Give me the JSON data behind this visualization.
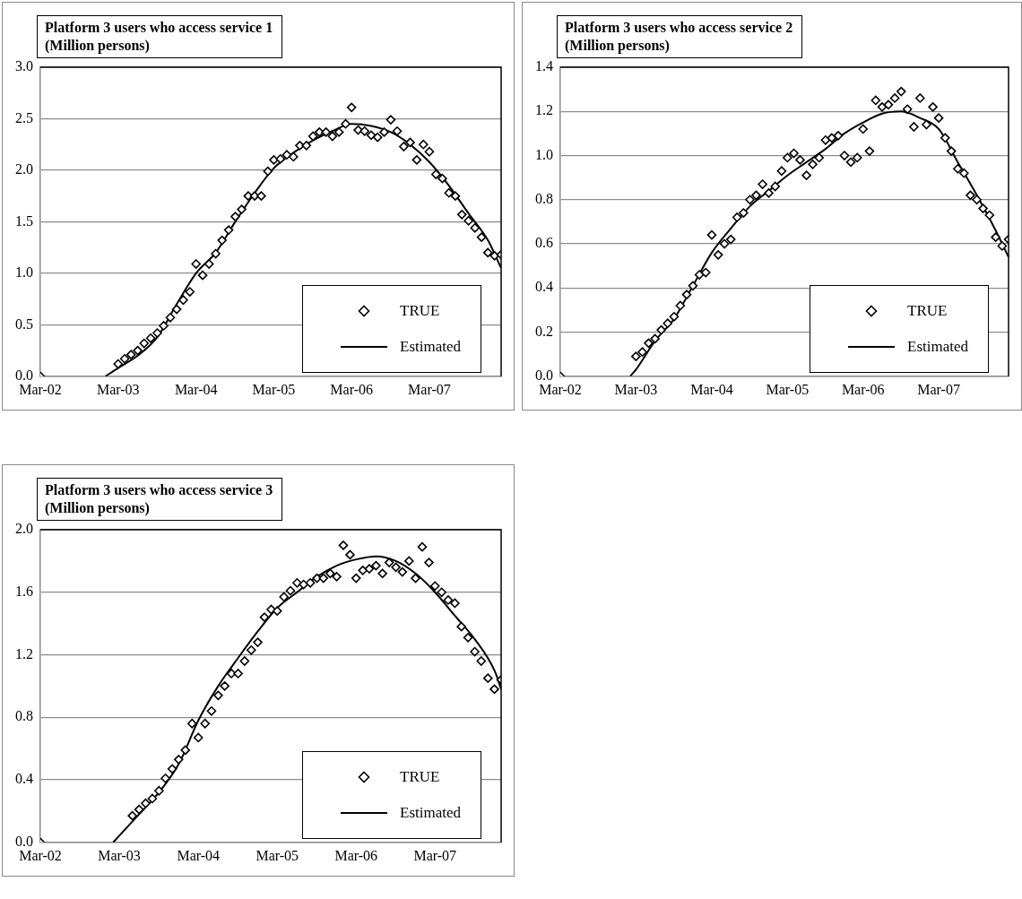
{
  "chart_data": [
    {
      "type": "scatter",
      "title": "Platform 3 users who access service 1",
      "ylabel": "(Million persons)",
      "xlim": [
        "2002-03",
        "2008-02"
      ],
      "ylim": [
        0,
        3
      ],
      "xticks": [
        {
          "value": "2002-03",
          "label": "Mar-02"
        },
        {
          "value": "2003-03",
          "label": "Mar-03"
        },
        {
          "value": "2004-03",
          "label": "Mar-04"
        },
        {
          "value": "2005-03",
          "label": "Mar-05"
        },
        {
          "value": "2006-03",
          "label": "Mar-06"
        },
        {
          "value": "2007-03",
          "label": "Mar-07"
        }
      ],
      "yticks": [
        {
          "value": 0,
          "label": "0.0"
        },
        0.5,
        {
          "value": 1,
          "label": "1.0"
        },
        1.5,
        {
          "value": 2,
          "label": "2.0"
        },
        2.5,
        {
          "value": 3,
          "label": "3.0"
        }
      ],
      "grid": "y",
      "legend": "bottom right",
      "series": [
        {
          "name": "TRUE",
          "type": "scatter",
          "color": "#000000",
          "marker": "diamond",
          "x": [
            "2002-03",
            "2003-03",
            "2003-04",
            "2003-05",
            "2003-06",
            "2003-07",
            "2003-08",
            "2003-09",
            "2003-10",
            "2003-11",
            "2003-12",
            "2004-01",
            "2004-02",
            "2004-03",
            "2004-04",
            "2004-05",
            "2004-06",
            "2004-07",
            "2004-08",
            "2004-09",
            "2004-10",
            "2004-11",
            "2004-12",
            "2005-01",
            "2005-02",
            "2005-03",
            "2005-04",
            "2005-05",
            "2005-06",
            "2005-07",
            "2005-08",
            "2005-09",
            "2005-10",
            "2005-11",
            "2005-12",
            "2006-01",
            "2006-02",
            "2006-03",
            "2006-04",
            "2006-05",
            "2006-06",
            "2006-07",
            "2006-08",
            "2006-09",
            "2006-10",
            "2006-11",
            "2006-12",
            "2007-01",
            "2007-02",
            "2007-03",
            "2007-04",
            "2007-05",
            "2007-06",
            "2007-07",
            "2007-08",
            "2007-09",
            "2007-10",
            "2007-11",
            "2007-12",
            "2008-01",
            "2008-02"
          ],
          "values": [
            0,
            0.12,
            0.17,
            0.21,
            0.25,
            0.32,
            0.37,
            0.42,
            0.49,
            0.57,
            0.65,
            0.74,
            0.82,
            1.09,
            0.98,
            1.09,
            1.19,
            1.32,
            1.42,
            1.55,
            1.62,
            1.75,
            1.75,
            1.75,
            1.99,
            2.1,
            2.11,
            2.15,
            2.13,
            2.24,
            2.24,
            2.33,
            2.37,
            2.37,
            2.33,
            2.37,
            2.45,
            2.61,
            2.39,
            2.38,
            2.34,
            2.32,
            2.37,
            2.49,
            2.38,
            2.23,
            2.27,
            2.1,
            2.25,
            2.18,
            1.96,
            1.92,
            1.78,
            1.75,
            1.57,
            1.51,
            1.44,
            1.35,
            1.2,
            1.17,
            1.18
          ]
        },
        {
          "name": "Estimated",
          "type": "line",
          "color": "#000000",
          "marker": "none",
          "line_style": "solid",
          "x": [
            "2003-01",
            "2003-03",
            "2003-06",
            "2003-09",
            "2003-12",
            "2004-03",
            "2004-06",
            "2004-09",
            "2004-12",
            "2005-03",
            "2005-06",
            "2005-09",
            "2005-12",
            "2006-03",
            "2006-06",
            "2006-09",
            "2006-12",
            "2007-03",
            "2007-06",
            "2007-09",
            "2007-12",
            "2008-02"
          ],
          "values": [
            0,
            0.08,
            0.2,
            0.38,
            0.7,
            1.0,
            1.2,
            1.5,
            1.78,
            2.02,
            2.17,
            2.29,
            2.38,
            2.45,
            2.43,
            2.37,
            2.25,
            2.08,
            1.85,
            1.58,
            1.32,
            1.05
          ]
        }
      ]
    },
    {
      "type": "scatter",
      "title": "Platform 3 users who access service 2",
      "ylabel": "(Million persons)",
      "xlim": [
        "2002-03",
        "2008-02"
      ],
      "ylim": [
        0,
        1.4
      ],
      "xticks": [
        {
          "value": "2002-03",
          "label": "Mar-02"
        },
        {
          "value": "2003-03",
          "label": "Mar-03"
        },
        {
          "value": "2004-03",
          "label": "Mar-04"
        },
        {
          "value": "2005-03",
          "label": "Mar-05"
        },
        {
          "value": "2006-03",
          "label": "Mar-06"
        },
        {
          "value": "2007-03",
          "label": "Mar-07"
        }
      ],
      "yticks": [
        {
          "value": 0,
          "label": "0.0"
        },
        0.2,
        0.4,
        0.6,
        0.8,
        {
          "value": 1,
          "label": "1.0"
        },
        1.2,
        1.4
      ],
      "grid": "y",
      "legend": "bottom right",
      "series": [
        {
          "name": "TRUE",
          "type": "scatter",
          "color": "#000000",
          "marker": "diamond",
          "x": [
            "2002-03",
            "2003-03",
            "2003-04",
            "2003-05",
            "2003-06",
            "2003-07",
            "2003-08",
            "2003-09",
            "2003-10",
            "2003-11",
            "2003-12",
            "2004-01",
            "2004-02",
            "2004-03",
            "2004-04",
            "2004-05",
            "2004-06",
            "2004-07",
            "2004-08",
            "2004-09",
            "2004-10",
            "2004-11",
            "2004-12",
            "2005-01",
            "2005-02",
            "2005-03",
            "2005-04",
            "2005-05",
            "2005-06",
            "2005-07",
            "2005-08",
            "2005-09",
            "2005-10",
            "2005-11",
            "2005-12",
            "2006-01",
            "2006-02",
            "2006-03",
            "2006-04",
            "2006-05",
            "2006-06",
            "2006-07",
            "2006-08",
            "2006-09",
            "2006-10",
            "2006-11",
            "2006-12",
            "2007-01",
            "2007-02",
            "2007-03",
            "2007-04",
            "2007-05",
            "2007-06",
            "2007-07",
            "2007-08",
            "2007-09",
            "2007-10",
            "2007-11",
            "2007-12",
            "2008-01",
            "2008-02"
          ],
          "values": [
            0,
            0.09,
            0.11,
            0.15,
            0.17,
            0.21,
            0.24,
            0.27,
            0.32,
            0.37,
            0.41,
            0.46,
            0.47,
            0.64,
            0.55,
            0.6,
            0.62,
            0.72,
            0.74,
            0.8,
            0.82,
            0.87,
            0.83,
            0.86,
            0.93,
            0.99,
            1.01,
            0.98,
            0.91,
            0.96,
            0.99,
            1.07,
            1.08,
            1.09,
            1.0,
            0.97,
            0.99,
            1.12,
            1.02,
            1.25,
            1.22,
            1.23,
            1.26,
            1.29,
            1.21,
            1.13,
            1.26,
            1.14,
            1.22,
            1.17,
            1.08,
            1.02,
            0.94,
            0.92,
            0.82,
            0.8,
            0.76,
            0.73,
            0.63,
            0.59,
            0.62
          ]
        },
        {
          "name": "Estimated",
          "type": "line",
          "color": "#000000",
          "marker": "none",
          "line_style": "solid",
          "x": [
            "2003-02",
            "2003-03",
            "2003-06",
            "2003-09",
            "2003-12",
            "2004-03",
            "2004-06",
            "2004-09",
            "2004-12",
            "2005-03",
            "2005-06",
            "2005-09",
            "2005-12",
            "2006-03",
            "2006-06",
            "2006-09",
            "2006-12",
            "2007-03",
            "2007-06",
            "2007-09",
            "2007-12",
            "2008-02"
          ],
          "values": [
            0,
            0.03,
            0.16,
            0.26,
            0.41,
            0.56,
            0.67,
            0.77,
            0.84,
            0.91,
            0.97,
            1.03,
            1.1,
            1.15,
            1.19,
            1.2,
            1.17,
            1.12,
            0.97,
            0.82,
            0.66,
            0.54
          ]
        }
      ]
    },
    {
      "type": "scatter",
      "title": "Platform 3 users who access service 3",
      "ylabel": "(Million persons)",
      "xlim": [
        "2002-03",
        "2008-01"
      ],
      "ylim": [
        0,
        2
      ],
      "xticks": [
        {
          "value": "2002-03",
          "label": "Mar-02"
        },
        {
          "value": "2003-03",
          "label": "Mar-03"
        },
        {
          "value": "2004-03",
          "label": "Mar-04"
        },
        {
          "value": "2005-03",
          "label": "Mar-05"
        },
        {
          "value": "2006-03",
          "label": "Mar-06"
        },
        {
          "value": "2007-03",
          "label": "Mar-07"
        }
      ],
      "yticks": [
        {
          "value": 0,
          "label": "0.0"
        },
        0.4,
        0.8,
        1.2,
        1.6,
        {
          "value": 2,
          "label": "2.0"
        }
      ],
      "grid": "y",
      "legend": "bottom right",
      "series": [
        {
          "name": "TRUE",
          "type": "scatter",
          "color": "#000000",
          "marker": "diamond",
          "x": [
            "2002-03",
            "2003-05",
            "2003-06",
            "2003-07",
            "2003-08",
            "2003-09",
            "2003-10",
            "2003-11",
            "2003-12",
            "2004-01",
            "2004-02",
            "2004-03",
            "2004-04",
            "2004-05",
            "2004-06",
            "2004-07",
            "2004-08",
            "2004-09",
            "2004-10",
            "2004-11",
            "2004-12",
            "2005-01",
            "2005-02",
            "2005-03",
            "2005-04",
            "2005-05",
            "2005-06",
            "2005-07",
            "2005-08",
            "2005-09",
            "2005-10",
            "2005-11",
            "2005-12",
            "2006-01",
            "2006-02",
            "2006-03",
            "2006-04",
            "2006-05",
            "2006-06",
            "2006-07",
            "2006-08",
            "2006-09",
            "2006-10",
            "2006-11",
            "2006-12",
            "2007-01",
            "2007-02",
            "2007-03",
            "2007-04",
            "2007-05",
            "2007-06",
            "2007-07",
            "2007-08",
            "2007-09",
            "2007-10",
            "2007-11",
            "2007-12",
            "2008-01"
          ],
          "values": [
            0,
            0.17,
            0.21,
            0.25,
            0.28,
            0.33,
            0.41,
            0.47,
            0.53,
            0.59,
            0.76,
            0.67,
            0.76,
            0.84,
            0.94,
            1.0,
            1.08,
            1.08,
            1.16,
            1.23,
            1.28,
            1.44,
            1.49,
            1.48,
            1.57,
            1.61,
            1.66,
            1.65,
            1.66,
            1.69,
            1.69,
            1.72,
            1.7,
            1.9,
            1.84,
            1.69,
            1.74,
            1.75,
            1.77,
            1.72,
            1.79,
            1.76,
            1.73,
            1.8,
            1.69,
            1.89,
            1.79,
            1.64,
            1.6,
            1.55,
            1.53,
            1.38,
            1.31,
            1.22,
            1.16,
            1.05,
            0.98,
            1.04
          ]
        },
        {
          "name": "Estimated",
          "type": "line",
          "color": "#000000",
          "marker": "none",
          "line_style": "solid",
          "x": [
            "2003-02",
            "2003-06",
            "2003-09",
            "2003-12",
            "2004-03",
            "2004-06",
            "2004-09",
            "2004-12",
            "2005-03",
            "2005-06",
            "2005-09",
            "2005-12",
            "2006-03",
            "2006-06",
            "2006-09",
            "2006-12",
            "2007-03",
            "2007-06",
            "2007-09",
            "2007-12",
            "2008-01"
          ],
          "values": [
            0,
            0.18,
            0.32,
            0.5,
            0.78,
            1.0,
            1.18,
            1.35,
            1.5,
            1.6,
            1.7,
            1.77,
            1.81,
            1.83,
            1.8,
            1.72,
            1.6,
            1.45,
            1.3,
            1.1,
            0.98
          ]
        }
      ]
    }
  ]
}
